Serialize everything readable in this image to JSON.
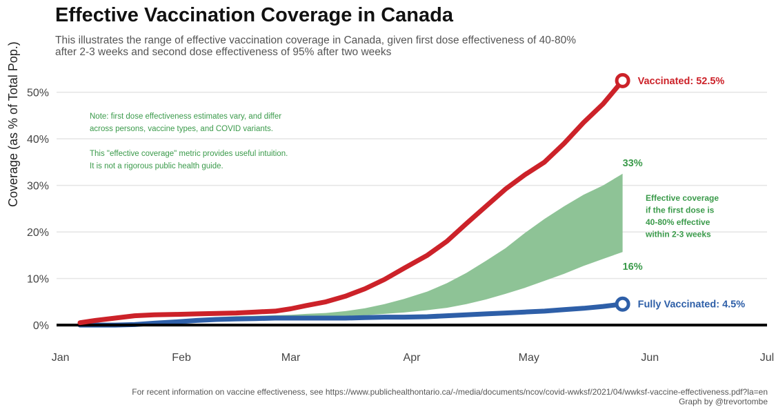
{
  "chart_data": {
    "type": "line",
    "title": "Effective Vaccination Coverage in Canada",
    "subtitle": "This illustrates the range of effective vaccination coverage in Canada, given first dose effectiveness of 40-80% after 2-3 weeks and second dose effectiveness of 95% after two weeks",
    "ylabel": "Coverage (as % of Total Pop.)",
    "xlabel": "",
    "x_ticks": [
      "Jan",
      "Feb",
      "Mar",
      "Apr",
      "May",
      "Jun",
      "Jul"
    ],
    "x_tick_dates": [
      "2021-01-01",
      "2021-02-01",
      "2021-03-01",
      "2021-04-01",
      "2021-05-01",
      "2021-06-01",
      "2021-07-01"
    ],
    "y_ticks": [
      "0%",
      "10%",
      "20%",
      "30%",
      "40%",
      "50%"
    ],
    "y_tick_values": [
      0,
      10,
      20,
      30,
      40,
      50
    ],
    "xlim": [
      "2020-12-31",
      "2021-07-01"
    ],
    "ylim": [
      -2.8,
      55
    ],
    "grid": true,
    "series": [
      {
        "name": "Vaccinated",
        "color": "#cc2229",
        "x": [
          "2021-01-06",
          "2021-01-10",
          "2021-01-15",
          "2021-01-20",
          "2021-01-25",
          "2021-01-31",
          "2021-02-05",
          "2021-02-10",
          "2021-02-15",
          "2021-02-20",
          "2021-02-25",
          "2021-03-01",
          "2021-03-05",
          "2021-03-10",
          "2021-03-15",
          "2021-03-20",
          "2021-03-25",
          "2021-03-30",
          "2021-04-05",
          "2021-04-10",
          "2021-04-15",
          "2021-04-20",
          "2021-04-25",
          "2021-04-30",
          "2021-05-05",
          "2021-05-10",
          "2021-05-15",
          "2021-05-20",
          "2021-05-25"
        ],
        "values": [
          0.5,
          1.0,
          1.5,
          2.0,
          2.2,
          2.3,
          2.4,
          2.5,
          2.6,
          2.8,
          3.0,
          3.5,
          4.2,
          5.0,
          6.2,
          7.8,
          9.8,
          12.2,
          15.0,
          18.0,
          21.8,
          25.5,
          29.2,
          32.3,
          35.0,
          39.0,
          43.5,
          47.5,
          52.5
        ]
      },
      {
        "name": "Fully Vaccinated",
        "color": "#2e5fa8",
        "x": [
          "2021-01-06",
          "2021-01-10",
          "2021-01-15",
          "2021-01-20",
          "2021-01-25",
          "2021-01-31",
          "2021-02-05",
          "2021-02-10",
          "2021-02-15",
          "2021-02-20",
          "2021-02-25",
          "2021-03-01",
          "2021-03-05",
          "2021-03-10",
          "2021-03-15",
          "2021-03-20",
          "2021-03-25",
          "2021-03-30",
          "2021-04-05",
          "2021-04-10",
          "2021-04-15",
          "2021-04-20",
          "2021-04-25",
          "2021-04-30",
          "2021-05-05",
          "2021-05-10",
          "2021-05-15",
          "2021-05-20",
          "2021-05-25"
        ],
        "values": [
          0.0,
          0.0,
          0.0,
          0.1,
          0.4,
          0.7,
          1.0,
          1.2,
          1.3,
          1.4,
          1.5,
          1.5,
          1.5,
          1.5,
          1.5,
          1.6,
          1.7,
          1.7,
          1.8,
          2.0,
          2.2,
          2.4,
          2.6,
          2.8,
          3.0,
          3.3,
          3.6,
          4.0,
          4.5
        ]
      },
      {
        "name": "Effective coverage (upper, 80%)",
        "color": "#8ec396",
        "x": [
          "2021-01-20",
          "2021-01-25",
          "2021-01-31",
          "2021-02-05",
          "2021-02-10",
          "2021-02-15",
          "2021-02-20",
          "2021-02-25",
          "2021-03-01",
          "2021-03-05",
          "2021-03-10",
          "2021-03-15",
          "2021-03-20",
          "2021-03-25",
          "2021-03-30",
          "2021-04-05",
          "2021-04-10",
          "2021-04-15",
          "2021-04-20",
          "2021-04-25",
          "2021-04-30",
          "2021-05-05",
          "2021-05-10",
          "2021-05-15",
          "2021-05-20",
          "2021-05-25"
        ],
        "values": [
          0.2,
          0.6,
          1.0,
          1.4,
          1.7,
          1.9,
          2.0,
          2.1,
          2.2,
          2.4,
          2.6,
          3.0,
          3.6,
          4.5,
          5.6,
          7.2,
          9.0,
          11.2,
          13.8,
          16.5,
          19.8,
          22.8,
          25.5,
          28.0,
          30.0,
          32.5
        ]
      },
      {
        "name": "Effective coverage (lower, 40%)",
        "color": "#8ec396",
        "x": [
          "2021-01-20",
          "2021-01-25",
          "2021-01-31",
          "2021-02-05",
          "2021-02-10",
          "2021-02-15",
          "2021-02-20",
          "2021-02-25",
          "2021-03-01",
          "2021-03-05",
          "2021-03-10",
          "2021-03-15",
          "2021-03-20",
          "2021-03-25",
          "2021-03-30",
          "2021-04-05",
          "2021-04-10",
          "2021-04-15",
          "2021-04-20",
          "2021-04-25",
          "2021-04-30",
          "2021-05-05",
          "2021-05-10",
          "2021-05-15",
          "2021-05-20",
          "2021-05-25"
        ],
        "values": [
          0.1,
          0.4,
          0.8,
          1.1,
          1.3,
          1.4,
          1.5,
          1.6,
          1.6,
          1.7,
          1.8,
          1.9,
          2.1,
          2.4,
          2.7,
          3.2,
          3.7,
          4.5,
          5.5,
          6.7,
          8.0,
          9.5,
          11.0,
          12.7,
          14.2,
          15.7
        ]
      }
    ],
    "end_labels": {
      "vaccinated": "Vaccinated: 52.5%",
      "fully": "Fully Vaccinated: 4.5%",
      "upper": "33%",
      "lower": "16%"
    },
    "annotations": {
      "note_lines": [
        "Note: first dose effectiveness estimates vary, and differ",
        "across persons, vaccine types, and COVID variants.",
        "",
        "This \"effective coverage\" metric provides useful intuition.",
        "It is not a rigorous public health guide."
      ],
      "band_lines": [
        "Effective coverage",
        "if the first dose is",
        "40-80% effective",
        "within 2-3 weeks"
      ]
    },
    "colors": {
      "vaccinated": "#cc2229",
      "fully": "#2e5fa8",
      "band": "#8ec396",
      "band_text": "#3a9a4a",
      "grid": "#e6e6e6"
    }
  },
  "caption": {
    "line1": "For recent information on vaccine effectiveness, see https://www.publichealthontario.ca/-/media/documents/ncov/covid-wwksf/2021/04/wwksf-vaccine-effectiveness.pdf?la=en",
    "line2": "Graph by @trevortombe"
  }
}
